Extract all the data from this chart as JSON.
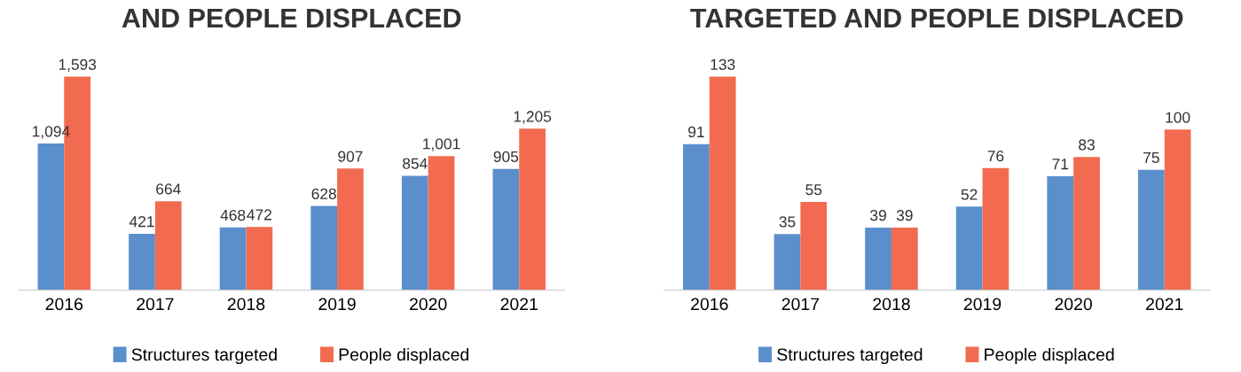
{
  "chart_data": [
    {
      "type": "bar",
      "title": "AND PEOPLE DISPLACED",
      "categories": [
        "2016",
        "2017",
        "2018",
        "2019",
        "2020",
        "2021"
      ],
      "series": [
        {
          "name": "Structures targeted",
          "color": "#5b8fcc",
          "values": [
            1094,
            421,
            468,
            628,
            854,
            905
          ],
          "value_labels": [
            "1,094",
            "421",
            "468",
            "628",
            "854",
            "905"
          ]
        },
        {
          "name": "People displaced",
          "color": "#f26b50",
          "values": [
            1593,
            664,
            472,
            907,
            1001,
            1205
          ],
          "value_labels": [
            "1,593",
            "664",
            "472",
            "907",
            "1,001",
            "1,205"
          ]
        }
      ],
      "legend": "bottom",
      "grid": false,
      "tick_labels": "x"
    },
    {
      "type": "bar",
      "title": "TARGETED AND PEOPLE DISPLACED",
      "categories": [
        "2016",
        "2017",
        "2018",
        "2019",
        "2020",
        "2021"
      ],
      "series": [
        {
          "name": "Structures targeted",
          "color": "#5b8fcc",
          "values": [
            91,
            35,
            39,
            52,
            71,
            75
          ]
        },
        {
          "name": "People displaced",
          "color": "#f26b50",
          "values": [
            133,
            55,
            39,
            76,
            83,
            100
          ]
        }
      ],
      "data_labels": true,
      "legend": "bottom",
      "grid": false,
      "tick_labels": "x"
    }
  ]
}
